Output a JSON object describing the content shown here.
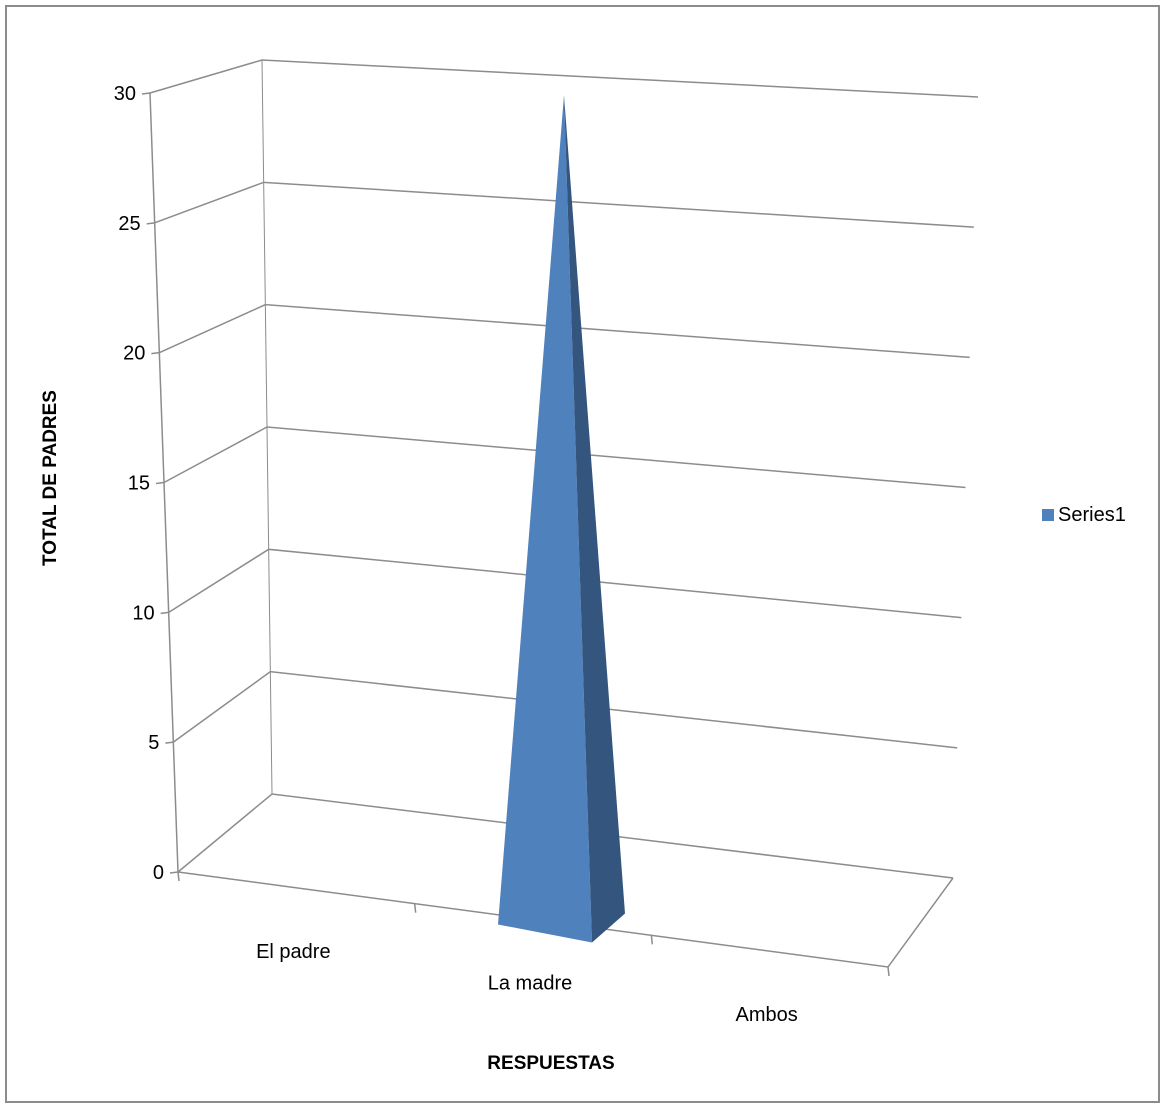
{
  "chart_data": {
    "type": "bar",
    "subtype": "3d-pyramid",
    "title": "",
    "xlabel": "RESPUESTAS",
    "ylabel": "TOTAL DE PADRES",
    "categories": [
      "El padre",
      "La madre",
      "Ambos"
    ],
    "series": [
      {
        "name": "Series1",
        "values": [
          0,
          30,
          0
        ],
        "color": "#4f81bd",
        "shade_color": "#34557e"
      }
    ],
    "ylim": [
      0,
      30
    ],
    "yticks": [
      "0",
      "5",
      "10",
      "15",
      "20",
      "25",
      "30"
    ],
    "grid": true,
    "legend_position": "right",
    "gridline_color": "#8c8c8c"
  }
}
